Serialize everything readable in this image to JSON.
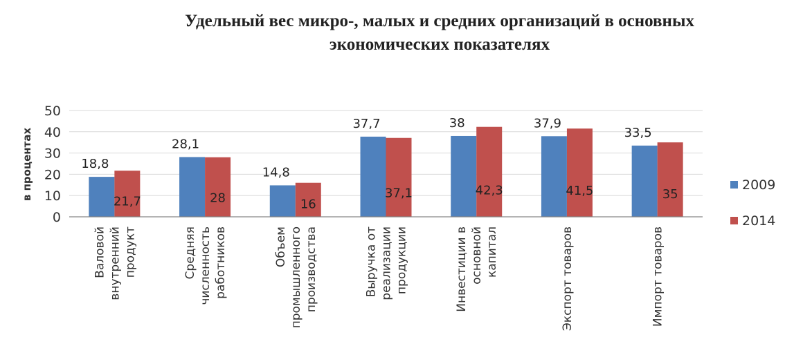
{
  "chart_data": {
    "type": "bar",
    "title_lines": [
      "Удельный вес микро-, малых и средних организаций в основных",
      "экономических показателях"
    ],
    "ylabel": "в процентах",
    "ylim": [
      0,
      50
    ],
    "yticks": [
      0,
      10,
      20,
      30,
      40,
      50
    ],
    "grid": true,
    "legend_position": "right",
    "categories": [
      [
        "Валовой",
        "внутренний",
        "продукт"
      ],
      [
        "Средняя",
        "численность",
        "работников"
      ],
      [
        "Объем",
        "промышленного",
        "производства"
      ],
      [
        "Выручка от",
        "реализации",
        "продукции"
      ],
      [
        "Инвестиции в",
        "основной",
        "капитал"
      ],
      [
        "Экспорт товаров"
      ],
      [
        "Импорт товаров"
      ]
    ],
    "series": [
      {
        "name": "2009",
        "color": "#4f81bd",
        "values": [
          18.8,
          28.1,
          14.8,
          37.7,
          38,
          37.9,
          33.5
        ],
        "labels": [
          "18,8",
          "28,1",
          "14,8",
          "37,7",
          "38",
          "37,9",
          "33,5"
        ]
      },
      {
        "name": "2014",
        "color": "#c0504d",
        "values": [
          21.7,
          28,
          16,
          37.1,
          42.3,
          41.5,
          35
        ],
        "labels": [
          "21,7",
          "28",
          "16",
          "37,1",
          "42,3",
          "41,5",
          "35"
        ]
      }
    ]
  }
}
